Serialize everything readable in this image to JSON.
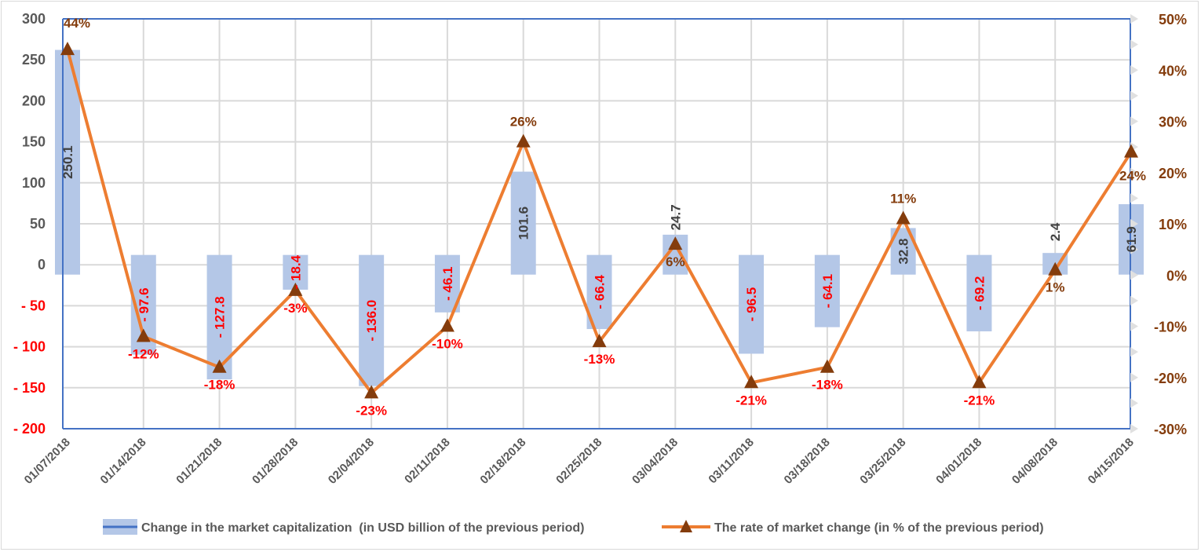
{
  "chart_data": {
    "type": "bar+line",
    "categories": [
      "01/07/2018",
      "01/14/2018",
      "01/21/2018",
      "01/28/2018",
      "02/04/2018",
      "02/11/2018",
      "02/18/2018",
      "02/25/2018",
      "03/04/2018",
      "03/11/2018",
      "03/18/2018",
      "03/25/2018",
      "04/01/2018",
      "04/08/2018",
      "04/15/2018"
    ],
    "series": [
      {
        "name": "Change in the market capitalization  (in USD billion of the previous period)",
        "type": "bar",
        "axis": "left",
        "values": [
          250.1,
          -97.6,
          -127.8,
          -18.4,
          -136.0,
          -46.1,
          101.6,
          -66.4,
          24.7,
          -96.5,
          -64.1,
          32.8,
          -69.2,
          2.4,
          61.9
        ],
        "labels": [
          "250.1",
          "- 97.6",
          "- 127.8",
          "- 18.4",
          "- 136.0",
          "- 46.1",
          "101.6",
          "- 66.4",
          "24.7",
          "- 96.5",
          "- 64.1",
          "32.8",
          "- 69.2",
          "2.4",
          "61.9"
        ],
        "color": "#B4C7E7"
      },
      {
        "name": "The rate of market change (in % of the previous period)",
        "type": "line",
        "axis": "right",
        "values": [
          44,
          -12,
          -18,
          -3,
          -23,
          -10,
          26,
          -13,
          6,
          -21,
          -18,
          11,
          -21,
          1,
          24
        ],
        "labels": [
          "44%",
          "-12%",
          "-18%",
          "-3%",
          "-23%",
          "-10%",
          "26%",
          "-13%",
          "6%",
          "-21%",
          "-18%",
          "11%",
          "-21%",
          "1%",
          "24%"
        ],
        "color": "#ED7D31",
        "marker_color": "#843C0C"
      }
    ],
    "y_left": {
      "ylim": [
        -200,
        300
      ],
      "ticks": [
        "300",
        "250",
        "200",
        "150",
        "100",
        "50",
        "0",
        "- 50",
        "- 100",
        "- 150",
        "- 200"
      ],
      "tick_values": [
        300,
        250,
        200,
        150,
        100,
        50,
        0,
        -50,
        -100,
        -150,
        -200
      ]
    },
    "y_right": {
      "ylim": [
        -30,
        50
      ],
      "ticks": [
        "50%",
        "40%",
        "30%",
        "20%",
        "10%",
        "0%",
        "-10%",
        "-20%",
        "-30%"
      ],
      "tick_values": [
        50,
        40,
        30,
        20,
        10,
        0,
        -10,
        -20,
        -30
      ]
    },
    "grid": true,
    "legend": "bottom",
    "colors": {
      "positive_label": "#404040",
      "negative_label": "#FF0000",
      "pct_positive": "#843C0C",
      "axis": "#4472C4",
      "left_tick_negative": "#FF0000",
      "left_tick": "#595959",
      "right_tick": "#843C0C"
    }
  }
}
